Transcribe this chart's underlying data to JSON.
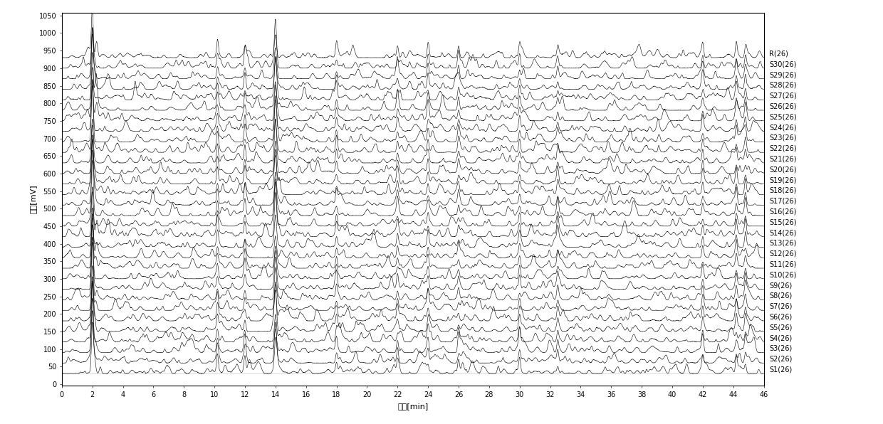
{
  "title": "",
  "xlabel": "时间[min]",
  "ylabel": "信号[mV]",
  "xlim": [
    0,
    46
  ],
  "ylim": [
    -5,
    1058
  ],
  "yticks": [
    0,
    50,
    100,
    150,
    200,
    250,
    300,
    350,
    400,
    450,
    500,
    550,
    600,
    650,
    700,
    750,
    800,
    850,
    900,
    950,
    1000,
    1050
  ],
  "xticks": [
    0,
    2,
    4,
    6,
    8,
    10,
    12,
    14,
    16,
    18,
    20,
    22,
    24,
    26,
    28,
    30,
    32,
    34,
    36,
    38,
    40,
    42,
    44,
    46
  ],
  "trace_labels": [
    "R(26)",
    "S30(26)",
    "S29(26)",
    "S28(26)",
    "S27(26)",
    "S26(26)",
    "S25(26)",
    "S24(26)",
    "S23(26)",
    "S22(26)",
    "S21(26)",
    "S20(26)",
    "S19(26)",
    "S18(26)",
    "S17(26)",
    "S16(26)",
    "S15(26)",
    "S14(26)",
    "S13(26)",
    "S12(26)",
    "S11(26)",
    "S10(26)",
    "S9(26)",
    "S8(26)",
    "S7(26)",
    "S6(26)",
    "S5(26)",
    "S4(26)",
    "S3(26)",
    "S2(26)",
    "S1(26)"
  ],
  "trace_baselines": [
    930,
    900,
    870,
    840,
    810,
    780,
    750,
    720,
    690,
    660,
    630,
    600,
    570,
    540,
    510,
    480,
    450,
    420,
    390,
    360,
    330,
    300,
    270,
    240,
    210,
    180,
    150,
    120,
    90,
    60,
    30
  ],
  "major_peak_times": [
    2.0,
    10.2,
    12.0,
    14.0,
    18.0,
    22.0,
    24.0,
    26.0,
    30.0,
    32.5,
    42.0,
    44.2,
    44.8
  ],
  "major_peak_heights": [
    120,
    40,
    35,
    90,
    30,
    28,
    35,
    28,
    30,
    32,
    28,
    35,
    32
  ],
  "major_peak_widths": [
    0.06,
    0.06,
    0.06,
    0.07,
    0.06,
    0.06,
    0.06,
    0.06,
    0.06,
    0.06,
    0.06,
    0.06,
    0.06
  ],
  "background_color": "#ffffff",
  "line_color": "#000000",
  "line_width": 0.4,
  "font_size": 7,
  "seed": 42,
  "num_points": 4600
}
